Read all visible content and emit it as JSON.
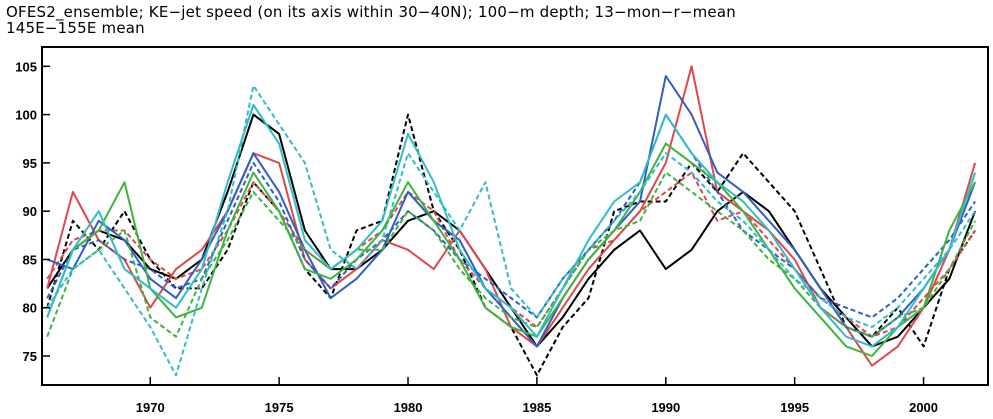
{
  "title_line1": "OFES2_ensemble; KE−jet speed (on its axis within 30−40N); 100−m depth; 13−mon−r−mean",
  "title_line2": "145E−155E mean",
  "chart_data": {
    "type": "line",
    "title": "OFES2_ensemble; KE−jet speed (on its axis within 30−40N); 100−m depth; 13−mon−r−mean 145E−155E mean",
    "xlabel": "",
    "ylabel": "",
    "xlim": [
      1965.8,
      2002.5
    ],
    "ylim": [
      72,
      107
    ],
    "x_ticks": [
      1970,
      1975,
      1980,
      1985,
      1990,
      1995,
      2000
    ],
    "y_ticks": [
      75,
      80,
      85,
      90,
      95,
      100,
      105
    ],
    "grid": false,
    "legend": "none",
    "x": [
      1966,
      1967,
      1968,
      1969,
      1970,
      1971,
      1972,
      1973,
      1974,
      1975,
      1976,
      1977,
      1978,
      1979,
      1980,
      1981,
      1982,
      1983,
      1984,
      1985,
      1986,
      1987,
      1988,
      1989,
      1990,
      1991,
      1992,
      1993,
      1994,
      1995,
      1996,
      1997,
      1998,
      1999,
      2000,
      2001,
      2002
    ],
    "series": [
      {
        "color": "#000000",
        "dash": false,
        "values": [
          82,
          86,
          88,
          87,
          84,
          83,
          85,
          92,
          100,
          98,
          88,
          84,
          84,
          86,
          89,
          90,
          88,
          84,
          80,
          76,
          79,
          83,
          86,
          88,
          84,
          86,
          90,
          92,
          90,
          86,
          82,
          79,
          76,
          77,
          80,
          83,
          90
        ]
      },
      {
        "color": "#000000",
        "dash": true,
        "values": [
          80,
          89,
          86,
          90,
          85,
          82,
          82,
          86,
          93,
          90,
          84,
          81,
          88,
          89,
          100,
          90,
          86,
          80,
          78,
          73,
          78,
          81,
          90,
          91,
          91,
          95,
          92,
          96,
          93,
          90,
          84,
          78,
          77,
          80,
          76,
          84,
          88
        ]
      },
      {
        "color": "#e0474c",
        "dash": false,
        "values": [
          82,
          92,
          87,
          85,
          80,
          84,
          86,
          90,
          96,
          95,
          85,
          82,
          84,
          87,
          86,
          84,
          88,
          84,
          78,
          76,
          80,
          84,
          87,
          90,
          95,
          105,
          92,
          90,
          88,
          85,
          80,
          78,
          74,
          76,
          80,
          86,
          95
        ]
      },
      {
        "color": "#e0474c",
        "dash": true,
        "values": [
          83,
          87,
          88,
          88,
          85,
          83,
          84,
          88,
          93,
          90,
          86,
          84,
          86,
          88,
          92,
          90,
          85,
          82,
          80,
          78,
          82,
          86,
          87,
          90,
          92,
          94,
          89,
          90,
          87,
          84,
          81,
          79,
          77,
          78,
          81,
          84,
          88
        ]
      },
      {
        "color": "#2f5fc4",
        "dash": false,
        "values": [
          85,
          84,
          89,
          87,
          83,
          81,
          85,
          90,
          96,
          92,
          86,
          81,
          83,
          86,
          92,
          89,
          87,
          82,
          79,
          76,
          81,
          85,
          88,
          91,
          104,
          100,
          94,
          92,
          89,
          86,
          82,
          78,
          77,
          79,
          82,
          86,
          93
        ]
      },
      {
        "color": "#2f5fc4",
        "dash": true,
        "values": [
          81,
          86,
          87,
          85,
          84,
          82,
          83,
          89,
          95,
          91,
          85,
          82,
          85,
          87,
          90,
          88,
          85,
          83,
          81,
          79,
          83,
          86,
          89,
          93,
          100,
          96,
          92,
          88,
          86,
          84,
          81,
          80,
          79,
          81,
          84,
          87,
          91
        ]
      },
      {
        "color": "#3db53d",
        "dash": false,
        "values": [
          79,
          86,
          88,
          93,
          82,
          79,
          80,
          88,
          94,
          90,
          84,
          83,
          85,
          88,
          93,
          89,
          85,
          80,
          78,
          77,
          81,
          85,
          88,
          92,
          97,
          95,
          93,
          90,
          86,
          82,
          79,
          76,
          75,
          78,
          80,
          88,
          93
        ]
      },
      {
        "color": "#3db53d",
        "dash": true,
        "values": [
          77,
          84,
          86,
          88,
          79,
          77,
          83,
          87,
          92,
          89,
          86,
          84,
          86,
          86,
          90,
          88,
          84,
          81,
          79,
          78,
          82,
          86,
          88,
          89,
          94,
          92,
          90,
          88,
          85,
          83,
          80,
          78,
          77,
          79,
          80,
          84,
          89
        ]
      },
      {
        "color": "#30bcc8",
        "dash": false,
        "values": [
          79,
          86,
          90,
          84,
          82,
          80,
          84,
          93,
          101,
          97,
          87,
          84,
          86,
          89,
          98,
          93,
          86,
          82,
          80,
          77,
          82,
          87,
          91,
          93,
          100,
          96,
          93,
          91,
          88,
          84,
          80,
          77,
          76,
          78,
          82,
          86,
          94
        ]
      },
      {
        "color": "#30bcc8",
        "dash": true,
        "values": [
          80,
          84,
          86,
          82,
          78,
          73,
          82,
          90,
          103,
          99,
          95,
          86,
          84,
          87,
          96,
          92,
          88,
          93,
          82,
          79,
          83,
          86,
          89,
          92,
          96,
          94,
          91,
          89,
          86,
          83,
          81,
          79,
          78,
          80,
          83,
          86,
          90
        ]
      }
    ]
  }
}
